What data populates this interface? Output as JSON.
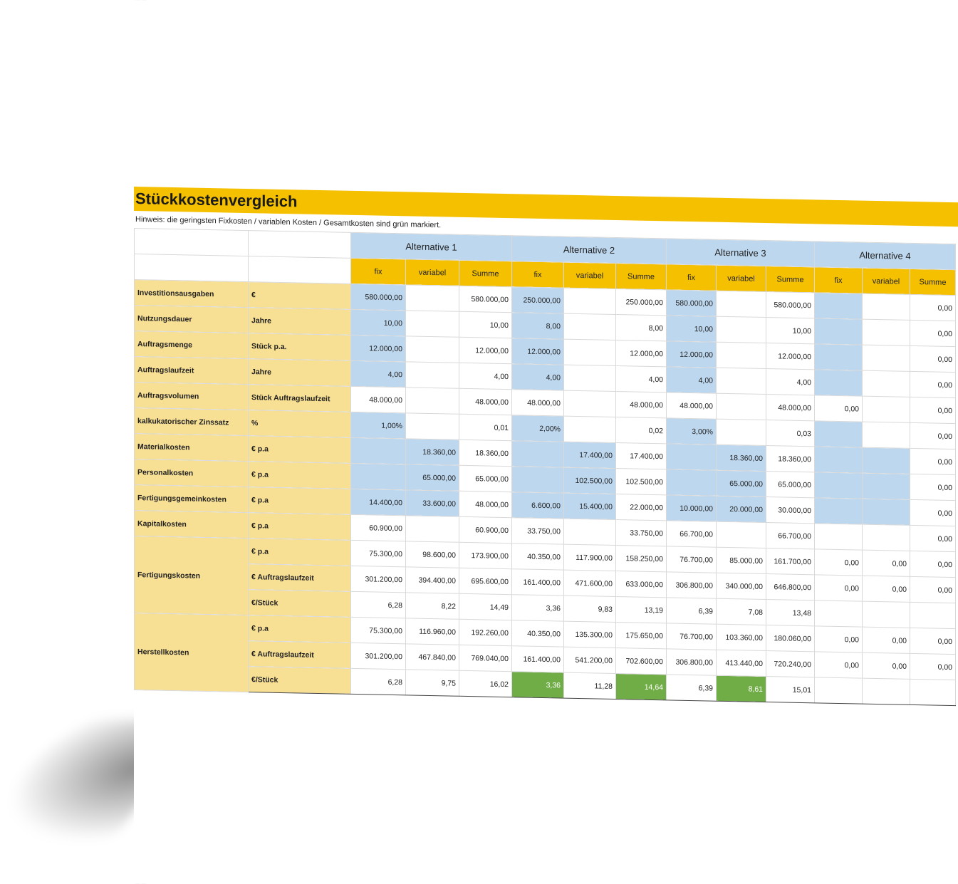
{
  "title": "Stückkostenvergleich",
  "hint": "Hinweis: die geringsten Fixkosten / variablen Kosten / Gesamtkosten sind grün markiert.",
  "alternatives": [
    "Alternative 1",
    "Alternative 2",
    "Alternative 3",
    "Alternative 4"
  ],
  "subheaders": [
    "fix",
    "variabel",
    "Summe"
  ],
  "rows": [
    {
      "label": "Investitionsausgaben",
      "unit": "€",
      "a1": [
        "580.000,00",
        "",
        "580.000,00"
      ],
      "a2": [
        "250.000,00",
        "",
        "250.000,00"
      ],
      "a3": [
        "580.000,00",
        "",
        "580.000,00"
      ],
      "a4": [
        "",
        "",
        "0,00"
      ]
    },
    {
      "label": "Nutzungsdauer",
      "unit": "Jahre",
      "a1": [
        "10,00",
        "",
        "10,00"
      ],
      "a2": [
        "8,00",
        "",
        "8,00"
      ],
      "a3": [
        "10,00",
        "",
        "10,00"
      ],
      "a4": [
        "",
        "",
        "0,00"
      ]
    },
    {
      "label": "Auftragsmenge",
      "unit": "Stück p.a.",
      "a1": [
        "12.000,00",
        "",
        "12.000,00"
      ],
      "a2": [
        "12.000,00",
        "",
        "12.000,00"
      ],
      "a3": [
        "12.000,00",
        "",
        "12.000,00"
      ],
      "a4": [
        "",
        "",
        "0,00"
      ]
    },
    {
      "label": "Auftragslaufzeit",
      "unit": "Jahre",
      "a1": [
        "4,00",
        "",
        "4,00"
      ],
      "a2": [
        "4,00",
        "",
        "4,00"
      ],
      "a3": [
        "4,00",
        "",
        "4,00"
      ],
      "a4": [
        "",
        "",
        "0,00"
      ]
    },
    {
      "label": "Auftragsvolumen",
      "unit": "Stück Auftragslaufzeit",
      "a1": [
        "48.000,00",
        "",
        "48.000,00"
      ],
      "a2": [
        "48.000,00",
        "",
        "48.000,00"
      ],
      "a3": [
        "48.000,00",
        "",
        "48.000,00"
      ],
      "a4": [
        "0,00",
        "",
        "0,00"
      ]
    },
    {
      "label": "kalkukatorischer Zinssatz",
      "unit": "%",
      "a1": [
        "1,00%",
        "",
        "0,01"
      ],
      "a2": [
        "2,00%",
        "",
        "0,02"
      ],
      "a3": [
        "3,00%",
        "",
        "0,03"
      ],
      "a4": [
        "",
        "",
        "0,00"
      ]
    },
    {
      "label": "Materialkosten",
      "unit": "€ p.a",
      "a1": [
        "",
        "18.360,00",
        "18.360,00"
      ],
      "a2": [
        "",
        "17.400,00",
        "17.400,00"
      ],
      "a3": [
        "",
        "18.360,00",
        "18.360,00"
      ],
      "a4": [
        "",
        "",
        "0,00"
      ]
    },
    {
      "label": "Personalkosten",
      "unit": "€ p.a",
      "a1": [
        "",
        "65.000,00",
        "65.000,00"
      ],
      "a2": [
        "",
        "102.500,00",
        "102.500,00"
      ],
      "a3": [
        "",
        "65.000,00",
        "65.000,00"
      ],
      "a4": [
        "",
        "",
        "0,00"
      ]
    },
    {
      "label": "Fertigungsgemeinkosten",
      "unit": "€ p.a",
      "a1": [
        "14.400,00",
        "33.600,00",
        "48.000,00"
      ],
      "a2": [
        "6.600,00",
        "15.400,00",
        "22.000,00"
      ],
      "a3": [
        "10.000,00",
        "20.000,00",
        "30.000,00"
      ],
      "a4": [
        "",
        "",
        "0,00"
      ]
    },
    {
      "label": "Kapitalkosten",
      "unit": "€ p.a",
      "a1": [
        "60.900,00",
        "",
        "60.900,00"
      ],
      "a2": [
        "33.750,00",
        "",
        "33.750,00"
      ],
      "a3": [
        "66.700,00",
        "",
        "66.700,00"
      ],
      "a4": [
        "",
        "",
        "0,00"
      ]
    }
  ],
  "groups": [
    {
      "label": "Fertigungskosten",
      "rows": [
        {
          "unit": "€ p.a",
          "a1": [
            "75.300,00",
            "98.600,00",
            "173.900,00"
          ],
          "a2": [
            "40.350,00",
            "117.900,00",
            "158.250,00"
          ],
          "a3": [
            "76.700,00",
            "85.000,00",
            "161.700,00"
          ],
          "a4": [
            "0,00",
            "0,00",
            "0,00"
          ]
        },
        {
          "unit": "€ Auftragslaufzeit",
          "a1": [
            "301.200,00",
            "394.400,00",
            "695.600,00"
          ],
          "a2": [
            "161.400,00",
            "471.600,00",
            "633.000,00"
          ],
          "a3": [
            "306.800,00",
            "340.000,00",
            "646.800,00"
          ],
          "a4": [
            "0,00",
            "0,00",
            "0,00"
          ]
        },
        {
          "unit": "€/Stück",
          "a1": [
            "6,28",
            "8,22",
            "14,49"
          ],
          "a2": [
            "3,36",
            "9,83",
            "13,19"
          ],
          "a3": [
            "6,39",
            "7,08",
            "13,48"
          ],
          "a4": [
            "",
            "",
            ""
          ]
        }
      ]
    },
    {
      "label": "Herstellkosten",
      "rows": [
        {
          "unit": "€ p.a",
          "a1": [
            "75.300,00",
            "116.960,00",
            "192.260,00"
          ],
          "a2": [
            "40.350,00",
            "135.300,00",
            "175.650,00"
          ],
          "a3": [
            "76.700,00",
            "103.360,00",
            "180.060,00"
          ],
          "a4": [
            "0,00",
            "0,00",
            "0,00"
          ]
        },
        {
          "unit": "€ Auftragslaufzeit",
          "a1": [
            "301.200,00",
            "467.840,00",
            "769.040,00"
          ],
          "a2": [
            "161.400,00",
            "541.200,00",
            "702.600,00"
          ],
          "a3": [
            "306.800,00",
            "413.440,00",
            "720.240,00"
          ],
          "a4": [
            "0,00",
            "0,00",
            "0,00"
          ]
        },
        {
          "unit": "€/Stück",
          "a1": [
            "6,28",
            "9,75",
            "16,02"
          ],
          "a2": [
            "3,36",
            "11,28",
            "14,64"
          ],
          "a3": [
            "6,39",
            "8,61",
            "15,01"
          ],
          "a4": [
            "",
            "",
            ""
          ]
        }
      ]
    }
  ],
  "colors": {
    "header_yellow": "#f5c000",
    "label_yellow": "#f7df94",
    "input_blue": "#bdd7ee",
    "best_green": "#70ad47"
  }
}
